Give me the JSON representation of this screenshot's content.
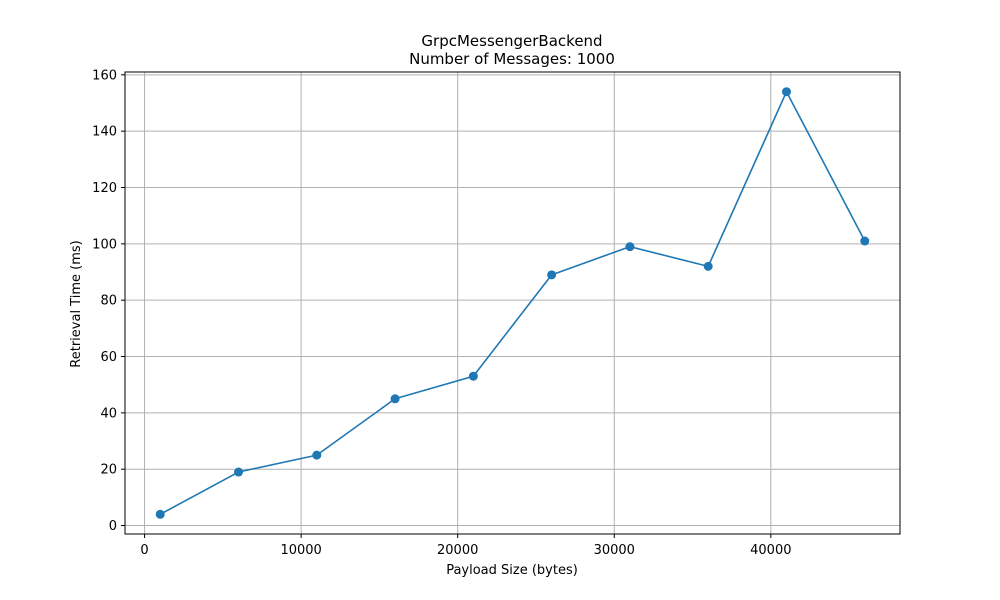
{
  "chart_data": {
    "type": "line",
    "title": "GrpcMessengerBackend",
    "subtitle": "Number of Messages: 1000",
    "xlabel": "Payload Size (bytes)",
    "ylabel": "Retrieval Time (ms)",
    "xlim": [
      -1250,
      48250
    ],
    "ylim": [
      -3,
      161
    ],
    "xticks": [
      0,
      10000,
      20000,
      30000,
      40000
    ],
    "xtick_labels": [
      "0",
      "10000",
      "20000",
      "30000",
      "40000"
    ],
    "yticks": [
      0,
      20,
      40,
      60,
      80,
      100,
      120,
      140,
      160
    ],
    "ytick_labels": [
      "0",
      "20",
      "40",
      "60",
      "80",
      "100",
      "120",
      "140",
      "160"
    ],
    "grid": true,
    "series": [
      {
        "color": "#1f77b4",
        "marker": "circle",
        "x": [
          1000,
          6000,
          11000,
          16000,
          21000,
          26000,
          31000,
          36000,
          41000,
          46000
        ],
        "values": [
          4,
          19,
          25,
          45,
          53,
          89,
          99,
          92,
          154,
          101
        ]
      }
    ]
  }
}
